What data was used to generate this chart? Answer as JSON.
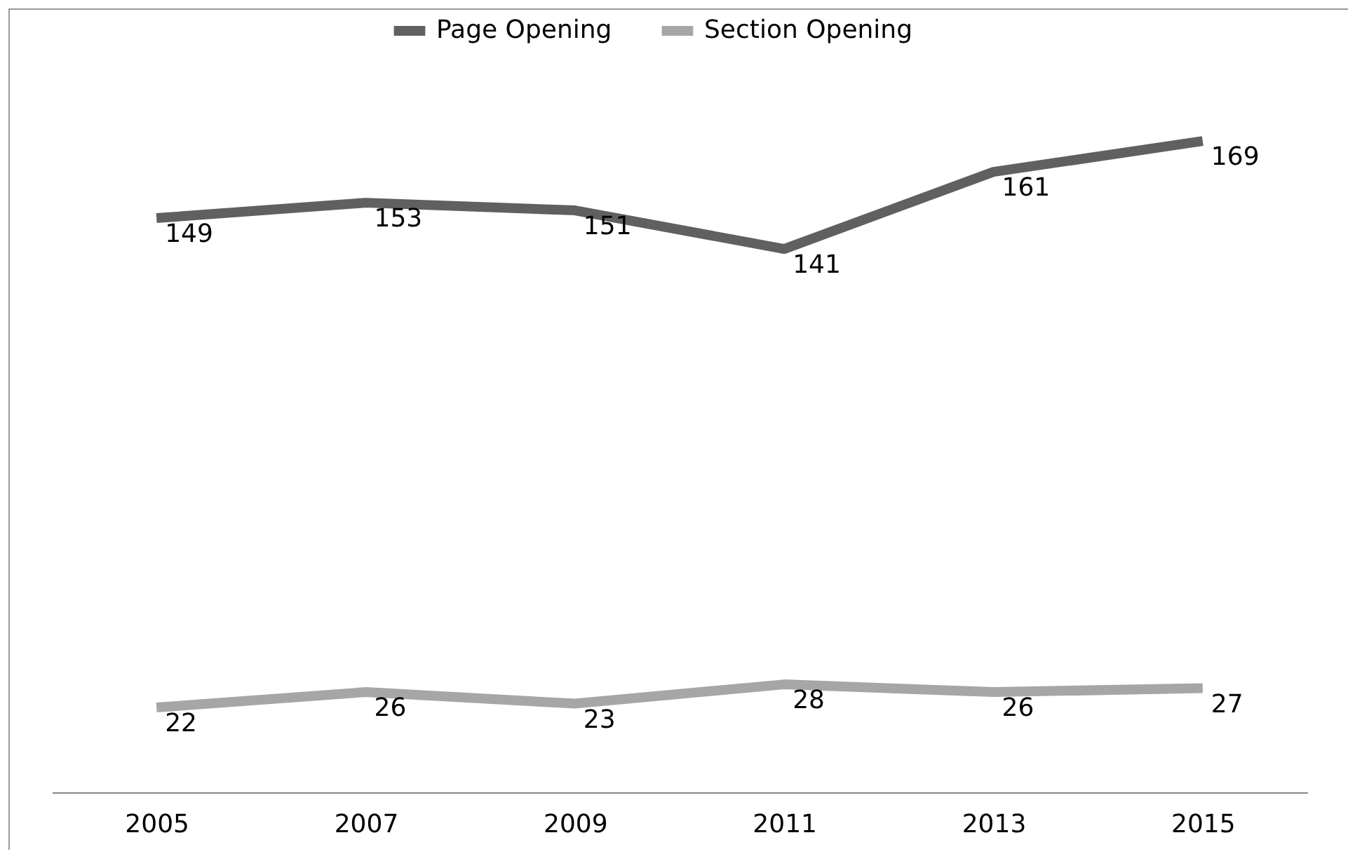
{
  "chart_data": {
    "type": "line",
    "categories": [
      "2005",
      "2007",
      "2009",
      "2011",
      "2013",
      "2015"
    ],
    "series": [
      {
        "name": "Page Opening",
        "color": "#606060",
        "values": [
          149,
          153,
          151,
          141,
          161,
          169
        ]
      },
      {
        "name": "Section Opening",
        "color": "#a6a6a6",
        "values": [
          22,
          26,
          23,
          28,
          26,
          27
        ]
      }
    ],
    "relative": false,
    "data_labels": true,
    "legend": "top",
    "grid": false,
    "marker": "none",
    "line_style": "solid"
  }
}
